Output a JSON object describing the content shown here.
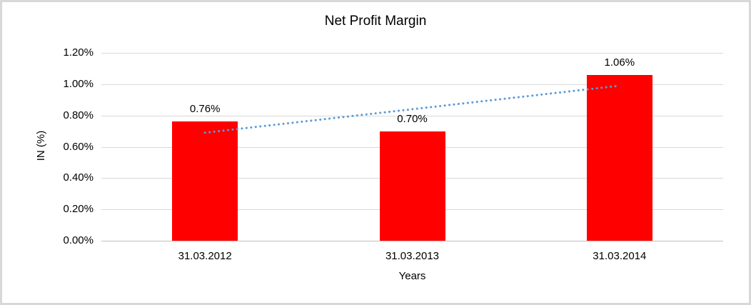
{
  "window": {
    "background": "#FFFFFF",
    "border_color": "#D8D8D8"
  },
  "chart_data": {
    "type": "bar",
    "title": "Net Profit Margin",
    "categories": [
      "31.03.2012",
      "31.03.2013",
      "31.03.2014"
    ],
    "values": [
      0.76,
      0.7,
      1.06
    ],
    "data_labels": [
      "0.76%",
      "0.70%",
      "1.06%"
    ],
    "xlabel": "Years",
    "ylabel": "IN (%)",
    "ylim": [
      0,
      1.2
    ],
    "ytick_labels": [
      "0.00%",
      "0.20%",
      "0.40%",
      "0.60%",
      "0.80%",
      "1.00%",
      "1.20%"
    ],
    "grid": true,
    "legend": "none",
    "bar_color": "#FF0000",
    "gridline_color": "#D9D9D9",
    "trendline": {
      "type": "linear",
      "style": "dotted",
      "color": "#5B9BD5",
      "start_value": 0.69,
      "end_value": 0.99
    }
  }
}
